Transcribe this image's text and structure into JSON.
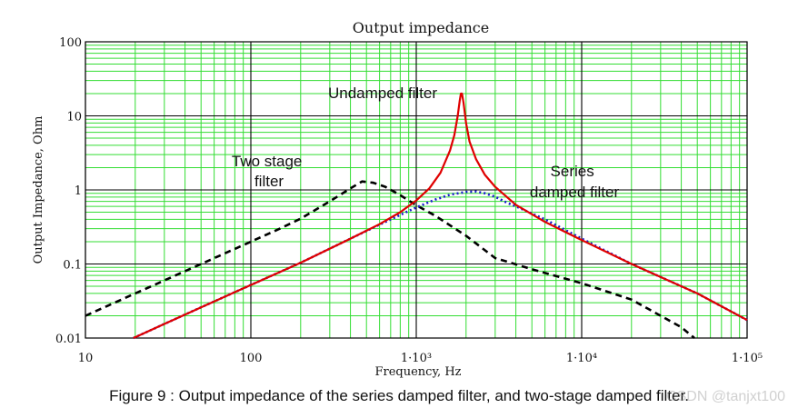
{
  "chart_data": {
    "type": "line",
    "title": "Output impedance",
    "xlabel": "Frequency, Hz",
    "ylabel": "Output Impedance, Ohm",
    "x_scale": "log",
    "y_scale": "log",
    "xlim": [
      10,
      100000
    ],
    "ylim": [
      0.01,
      100
    ],
    "x_ticks": [
      {
        "value": 10,
        "label": "10"
      },
      {
        "value": 100,
        "label": "100"
      },
      {
        "value": 1000,
        "label": "1·10³"
      },
      {
        "value": 10000,
        "label": "1·10⁴"
      },
      {
        "value": 100000,
        "label": "1·10⁵"
      }
    ],
    "y_ticks": [
      {
        "value": 100,
        "label": "100"
      },
      {
        "value": 10,
        "label": "10"
      },
      {
        "value": 1,
        "label": "1"
      },
      {
        "value": 0.1,
        "label": "0.1"
      },
      {
        "value": 0.01,
        "label": "0.01"
      }
    ],
    "grid": true,
    "series": [
      {
        "name": "",
        "color": "#e00000",
        "style": "solid",
        "points": [
          [
            19.5,
            0.01
          ],
          [
            30,
            0.0155
          ],
          [
            50,
            0.026
          ],
          [
            100,
            0.052
          ],
          [
            200,
            0.104
          ],
          [
            400,
            0.22
          ],
          [
            600,
            0.345
          ],
          [
            800,
            0.5
          ],
          [
            1000,
            0.72
          ],
          [
            1200,
            1.05
          ],
          [
            1400,
            1.7
          ],
          [
            1600,
            3.4
          ],
          [
            1700,
            5.5
          ],
          [
            1780,
            10
          ],
          [
            1830,
            16
          ],
          [
            1860,
            20
          ],
          [
            1890,
            20
          ],
          [
            1930,
            15
          ],
          [
            2000,
            8
          ],
          [
            2100,
            4.5
          ],
          [
            2300,
            2.6
          ],
          [
            2600,
            1.6
          ],
          [
            3000,
            1.1
          ],
          [
            4000,
            0.63
          ],
          [
            6000,
            0.37
          ],
          [
            10000,
            0.21
          ],
          [
            20000,
            0.1
          ],
          [
            50000,
            0.04
          ],
          [
            100000,
            0.0175
          ]
        ]
      },
      {
        "name": "",
        "color": "#1a1acc",
        "style": "dotted",
        "points": [
          [
            19.5,
            0.01
          ],
          [
            30,
            0.0155
          ],
          [
            50,
            0.026
          ],
          [
            100,
            0.052
          ],
          [
            200,
            0.104
          ],
          [
            400,
            0.22
          ],
          [
            600,
            0.34
          ],
          [
            800,
            0.46
          ],
          [
            1000,
            0.58
          ],
          [
            1300,
            0.74
          ],
          [
            1600,
            0.86
          ],
          [
            2000,
            0.94
          ],
          [
            2300,
            0.95
          ],
          [
            2600,
            0.9
          ],
          [
            3000,
            0.81
          ],
          [
            3500,
            0.68
          ],
          [
            4000,
            0.6
          ],
          [
            5000,
            0.48
          ],
          [
            6000,
            0.4
          ],
          [
            10000,
            0.22
          ],
          [
            20000,
            0.1
          ],
          [
            50000,
            0.04
          ],
          [
            100000,
            0.0175
          ]
        ]
      },
      {
        "name": "",
        "color": "#000000",
        "style": "dashed",
        "points": [
          [
            10,
            0.02
          ],
          [
            20,
            0.04
          ],
          [
            40,
            0.08
          ],
          [
            80,
            0.16
          ],
          [
            100,
            0.2
          ],
          [
            150,
            0.3
          ],
          [
            200,
            0.41
          ],
          [
            300,
            0.7
          ],
          [
            400,
            1.05
          ],
          [
            470,
            1.3
          ],
          [
            550,
            1.25
          ],
          [
            650,
            1.1
          ],
          [
            800,
            0.85
          ],
          [
            1000,
            0.62
          ],
          [
            1300,
            0.45
          ],
          [
            2000,
            0.24
          ],
          [
            3000,
            0.12
          ],
          [
            5000,
            0.085
          ],
          [
            10000,
            0.055
          ],
          [
            20000,
            0.033
          ],
          [
            40000,
            0.014
          ],
          [
            48000,
            0.01
          ]
        ]
      }
    ],
    "annotations": [
      {
        "lines": [
          "Undamped filter"
        ]
      },
      {
        "lines": [
          "Two stage",
          "filter"
        ]
      },
      {
        "lines": [
          "Series",
          "damped filter"
        ]
      }
    ]
  },
  "caption": "Figure 9 : Output impedance of the series damped filter, and two-stage damped filter.",
  "watermark": "CSDN @tanjxt100"
}
